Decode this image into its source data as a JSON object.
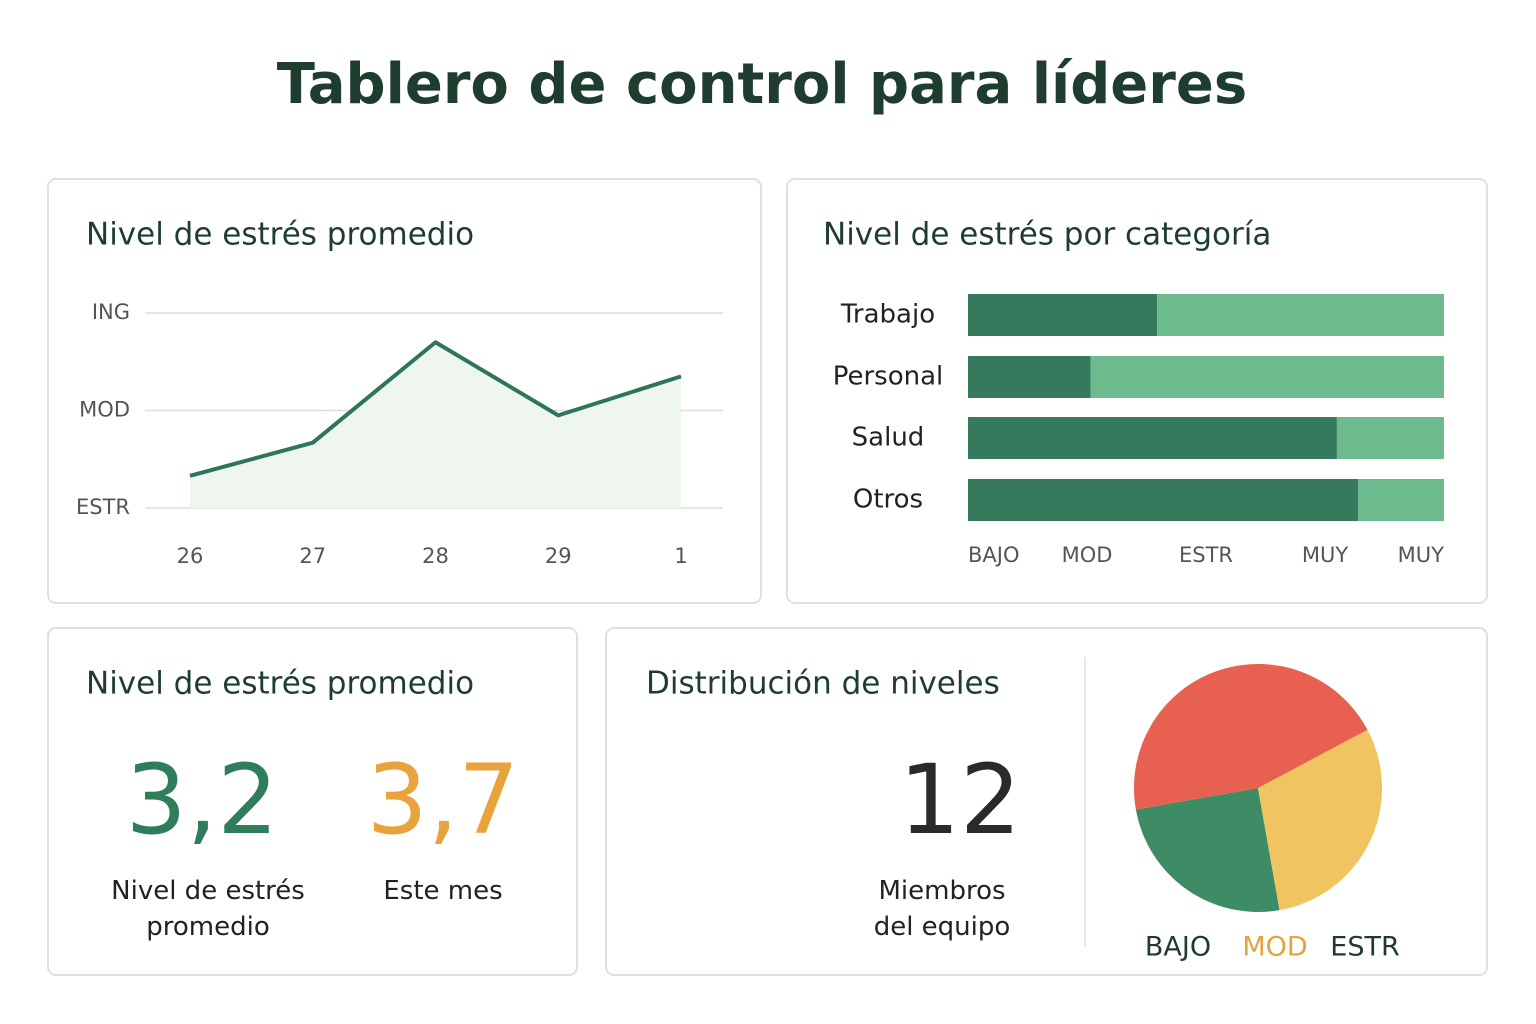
{
  "title": "Tablero de control para líderes",
  "chart_data": [
    {
      "type": "line",
      "title": "Nivel de estrés promedio",
      "categories": [
        "26",
        "27",
        "28",
        "29",
        "1"
      ],
      "values": [
        1.33,
        1.67,
        2.7,
        1.95,
        2.35
      ],
      "color": "#2e7559",
      "area_color": "#eef6ee",
      "ylim": [
        1,
        3
      ],
      "yticks": [
        {
          "value": 1,
          "label": "ESTR"
        },
        {
          "value": 2,
          "label": "MOD"
        },
        {
          "value": 3,
          "label": "ING"
        }
      ],
      "grid": true
    },
    {
      "type": "hbar_stacked",
      "title": "Nivel de estrés por categoría",
      "categories": [
        "Trabajo",
        "Personal",
        "Salud",
        "Otros"
      ],
      "series": [
        {
          "color": "#367a5e",
          "values": [
            1.59,
            1.03,
            3.1,
            3.28
          ]
        },
        {
          "color": "#6dba8f",
          "values": [
            2.41,
            2.97,
            0.9,
            0.72
          ]
        }
      ],
      "xlim": [
        0,
        4
      ],
      "xticks": [
        {
          "value": 0,
          "label": "BAJO"
        },
        {
          "value": 1,
          "label": "MOD"
        },
        {
          "value": 2,
          "label": "ESTR"
        },
        {
          "value": 3,
          "label": "MUY"
        },
        {
          "value": 4,
          "label": "MUY"
        }
      ]
    },
    {
      "type": "pie",
      "title": "Distribución de niveles",
      "categories": [
        "BAJO",
        "MOD",
        "ESTR"
      ],
      "values": [
        25,
        30,
        45
      ],
      "colors": [
        "#3e8c65",
        "#f1c462",
        "#e8604f"
      ]
    }
  ],
  "stats": {
    "title": "Nivel de estrés promedio",
    "items": [
      {
        "value": "3,2",
        "label": "Nivel de estrés promedio"
      },
      {
        "value": "3,7",
        "label": "Este mes"
      }
    ]
  },
  "team": {
    "value": "12",
    "label": "Miembros del equipo"
  }
}
